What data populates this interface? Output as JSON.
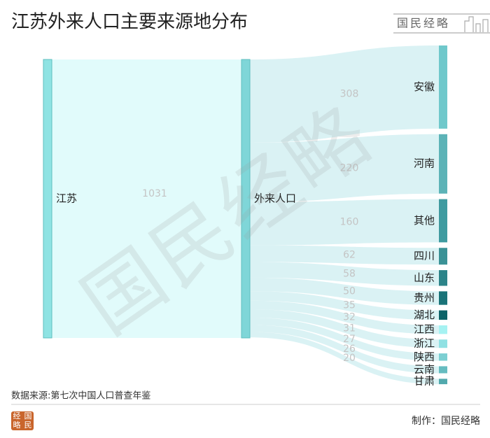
{
  "chart_data": {
    "type": "sankey",
    "title": "江苏外来人口主要来源地分布",
    "nodes": [
      {
        "name": "江苏",
        "color": "#8fe3e3"
      },
      {
        "name": "外来人口",
        "color": "#7fd6d8"
      },
      {
        "name": "安徽",
        "color": "#6fc8cb"
      },
      {
        "name": "河南",
        "color": "#5cb3b7"
      },
      {
        "name": "其他",
        "color": "#3f9ba0"
      },
      {
        "name": "四川",
        "color": "#3a9296"
      },
      {
        "name": "山东",
        "color": "#2c8489"
      },
      {
        "name": "贵州",
        "color": "#1a7378"
      },
      {
        "name": "湖北",
        "color": "#0c6368"
      },
      {
        "name": "江西",
        "color": "#a6f2f2"
      },
      {
        "name": "浙江",
        "color": "#90e1e3"
      },
      {
        "name": "陕西",
        "color": "#7ccfd2"
      },
      {
        "name": "云南",
        "color": "#66bcc0"
      },
      {
        "name": "甘肃",
        "color": "#52a9ad"
      }
    ],
    "links": [
      {
        "source": "江苏",
        "target": "外来人口",
        "value": 1031
      },
      {
        "source": "外来人口",
        "target": "安徽",
        "value": 308
      },
      {
        "source": "外来人口",
        "target": "河南",
        "value": 220
      },
      {
        "source": "外来人口",
        "target": "其他",
        "value": 160
      },
      {
        "source": "外来人口",
        "target": "四川",
        "value": 62
      },
      {
        "source": "外来人口",
        "target": "山东",
        "value": 58
      },
      {
        "source": "外来人口",
        "target": "贵州",
        "value": 50
      },
      {
        "source": "外来人口",
        "target": "湖北",
        "value": 35
      },
      {
        "source": "外来人口",
        "target": "江西",
        "value": 32
      },
      {
        "source": "外来人口",
        "target": "浙江",
        "value": 31
      },
      {
        "source": "外来人口",
        "target": "陕西",
        "value": 27
      },
      {
        "source": "外来人口",
        "target": "云南",
        "value": 26
      },
      {
        "source": "外来人口",
        "target": "甘肃",
        "value": 20
      }
    ],
    "source_note": "数据来源:第七次中国人口普查年鉴",
    "credit": "制作：国民经略",
    "brand": "国民经略",
    "badge": [
      "经",
      "国",
      "略",
      "民"
    ],
    "watermark": "国民经略"
  }
}
